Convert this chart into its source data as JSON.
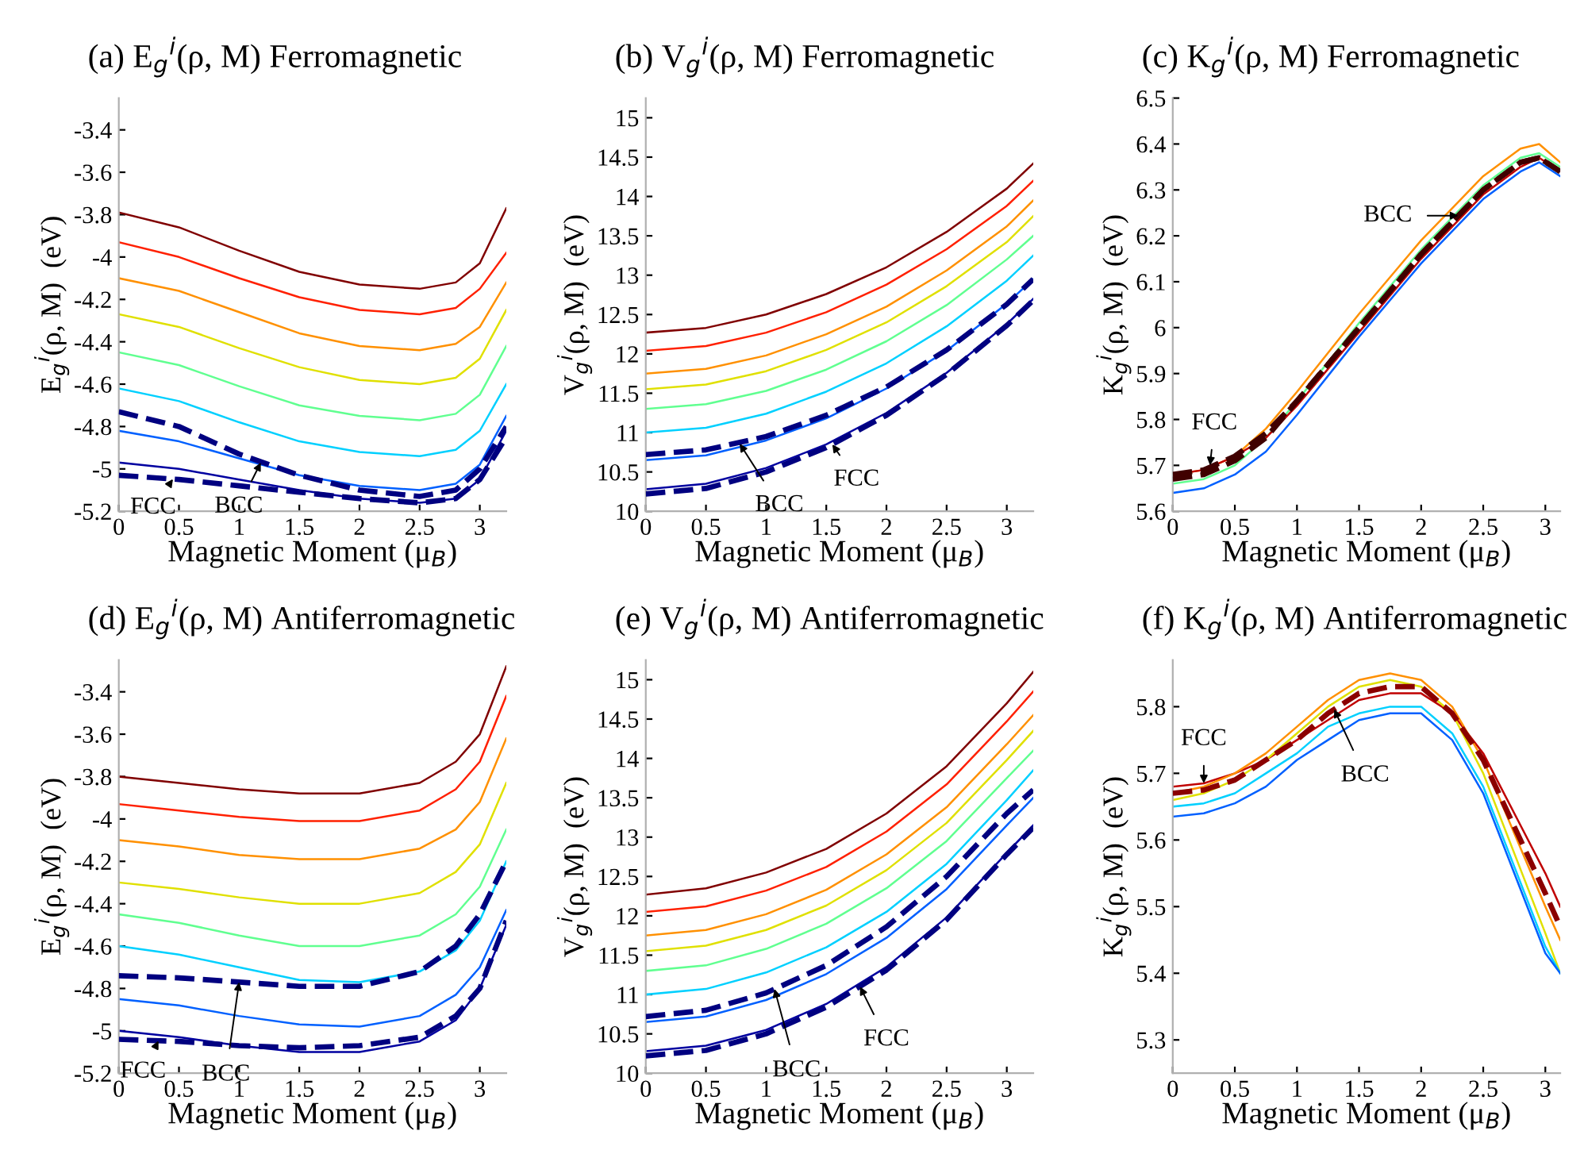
{
  "chart_data": [
    {
      "type": "line",
      "title": "(a) E$_{g}$$^{i}$(ρ, M) Ferromagnetic",
      "xlabel": "Magnetic Moment (μ$_{B}$)",
      "ylabel": "E$_{g}$$^{i}$(ρ, M)  (eV)",
      "x": [
        0,
        0.5,
        1,
        1.5,
        2,
        2.5,
        2.8,
        3,
        3.22
      ],
      "xlim": [
        0,
        3.22
      ],
      "xticks": [
        0,
        0.5,
        1,
        1.5,
        2,
        2.5,
        3
      ],
      "ylim": [
        -5.2,
        -3.25
      ],
      "yticks": [
        -5.2,
        -5,
        -4.8,
        -4.6,
        -4.4,
        -4.2,
        -4,
        -3.8,
        -3.6,
        -3.4
      ],
      "grid": false,
      "series": [
        {
          "color": "#800000",
          "values": [
            -3.79,
            -3.86,
            -3.97,
            -4.07,
            -4.13,
            -4.15,
            -4.12,
            -4.03,
            -3.77
          ]
        },
        {
          "color": "#ff2000",
          "values": [
            -3.93,
            -4.0,
            -4.1,
            -4.19,
            -4.25,
            -4.27,
            -4.24,
            -4.15,
            -3.98
          ]
        },
        {
          "color": "#ff9000",
          "values": [
            -4.1,
            -4.16,
            -4.26,
            -4.36,
            -4.42,
            -4.44,
            -4.41,
            -4.33,
            -4.12
          ]
        },
        {
          "color": "#e0e000",
          "values": [
            -4.27,
            -4.33,
            -4.43,
            -4.52,
            -4.58,
            -4.6,
            -4.57,
            -4.48,
            -4.25
          ]
        },
        {
          "color": "#60ff90",
          "values": [
            -4.45,
            -4.51,
            -4.61,
            -4.7,
            -4.75,
            -4.77,
            -4.74,
            -4.65,
            -4.42
          ]
        },
        {
          "color": "#00d0ff",
          "values": [
            -4.62,
            -4.68,
            -4.78,
            -4.87,
            -4.92,
            -4.94,
            -4.91,
            -4.82,
            -4.6
          ]
        },
        {
          "color": "#0060ff",
          "values": [
            -4.82,
            -4.87,
            -4.95,
            -5.03,
            -5.08,
            -5.1,
            -5.07,
            -4.98,
            -4.75
          ]
        },
        {
          "color": "#0000a0",
          "values": [
            -4.97,
            -5.0,
            -5.05,
            -5.1,
            -5.14,
            -5.16,
            -5.14,
            -5.05,
            -4.82
          ]
        },
        {
          "color": "#000080",
          "line_style": "dashed",
          "values": [
            -4.73,
            -4.8,
            -4.93,
            -5.03,
            -5.1,
            -5.13,
            -5.1,
            -5.0,
            -4.8
          ]
        },
        {
          "color": "#000080",
          "line_style": "dashed",
          "values": [
            -5.03,
            -5.05,
            -5.08,
            -5.11,
            -5.14,
            -5.16,
            -5.14,
            -5.05,
            -4.85
          ]
        }
      ],
      "annotations": [
        {
          "text": "FCC",
          "x": 0.45,
          "y": -5.048
        },
        {
          "text": "BCC",
          "x": 1.18,
          "y": -4.97
        }
      ]
    },
    {
      "type": "line",
      "title": "(b) V$_{g}$$^{i}$(ρ, M) Ferromagnetic",
      "xlabel": "Magnetic Moment (μ$_{B}$)",
      "ylabel": "V$_{g}$$^{i}$(ρ, M)  (eV)",
      "x": [
        0,
        0.5,
        1,
        1.5,
        2,
        2.5,
        3,
        3.22
      ],
      "xlim": [
        0,
        3.22
      ],
      "xticks": [
        0,
        0.5,
        1,
        1.5,
        2,
        2.5,
        3
      ],
      "ylim": [
        10,
        15.25
      ],
      "yticks": [
        10,
        10.5,
        11,
        11.5,
        12,
        12.5,
        13,
        13.5,
        14,
        14.5,
        15
      ],
      "grid": false,
      "series": [
        {
          "color": "#800000",
          "values": [
            12.27,
            12.33,
            12.5,
            12.76,
            13.1,
            13.55,
            14.1,
            14.42
          ]
        },
        {
          "color": "#ff2000",
          "values": [
            12.04,
            12.1,
            12.27,
            12.53,
            12.88,
            13.33,
            13.88,
            14.2
          ]
        },
        {
          "color": "#ff9000",
          "values": [
            11.75,
            11.81,
            11.98,
            12.25,
            12.6,
            13.06,
            13.62,
            13.95
          ]
        },
        {
          "color": "#e0e000",
          "values": [
            11.55,
            11.61,
            11.78,
            12.05,
            12.4,
            12.86,
            13.42,
            13.75
          ]
        },
        {
          "color": "#60ff90",
          "values": [
            11.3,
            11.36,
            11.53,
            11.8,
            12.16,
            12.62,
            13.2,
            13.5
          ]
        },
        {
          "color": "#00d0ff",
          "values": [
            11.0,
            11.06,
            11.24,
            11.52,
            11.88,
            12.35,
            12.93,
            13.25
          ]
        },
        {
          "color": "#0060ff",
          "values": [
            10.65,
            10.71,
            10.9,
            11.18,
            11.56,
            12.04,
            12.64,
            12.95
          ]
        },
        {
          "color": "#0000a0",
          "values": [
            10.28,
            10.35,
            10.55,
            10.85,
            11.25,
            11.76,
            12.38,
            12.7
          ]
        },
        {
          "color": "#000080",
          "line_style": "dashed",
          "values": [
            10.72,
            10.78,
            10.95,
            11.22,
            11.58,
            12.05,
            12.63,
            12.95
          ]
        },
        {
          "color": "#000080",
          "line_style": "dashed",
          "values": [
            10.22,
            10.29,
            10.5,
            10.81,
            11.22,
            11.74,
            12.36,
            12.68
          ]
        }
      ],
      "annotations": [
        {
          "text": "BCC",
          "x": 0.78,
          "y": 10.86
        },
        {
          "text": "FCC",
          "x": 1.55,
          "y": 10.85
        }
      ]
    },
    {
      "type": "line",
      "title": "(c) K$_{g}$$^{i}$(ρ, M) Ferromagnetic",
      "xlabel": "Magnetic Moment (μ$_{B}$)",
      "ylabel": "K$_{g}$$^{i}$(ρ, M)  (eV)",
      "x": [
        0,
        0.25,
        0.5,
        0.75,
        1,
        1.5,
        2,
        2.5,
        2.8,
        2.95,
        3.12
      ],
      "xlim": [
        0,
        3.12
      ],
      "xticks": [
        0,
        0.5,
        1,
        1.5,
        2,
        2.5,
        3
      ],
      "ylim": [
        5.6,
        6.5
      ],
      "yticks": [
        5.6,
        5.7,
        5.8,
        5.9,
        6,
        6.1,
        6.2,
        6.3,
        6.4,
        6.5
      ],
      "grid": false,
      "series": [
        {
          "color": "#ff9000",
          "values": [
            5.68,
            5.69,
            5.72,
            5.78,
            5.86,
            6.03,
            6.19,
            6.33,
            6.39,
            6.4,
            6.36
          ]
        },
        {
          "color": "#60ff90",
          "values": [
            5.66,
            5.67,
            5.7,
            5.76,
            5.84,
            6.01,
            6.17,
            6.31,
            6.37,
            6.38,
            6.35
          ]
        },
        {
          "color": "#0060ff",
          "values": [
            5.64,
            5.65,
            5.68,
            5.73,
            5.81,
            5.98,
            6.14,
            6.28,
            6.34,
            6.36,
            6.33
          ]
        },
        {
          "color": "#c00000",
          "values": [
            5.68,
            5.69,
            5.72,
            5.76,
            5.83,
            5.99,
            6.15,
            6.29,
            6.35,
            6.37,
            6.34
          ]
        },
        {
          "color": "#400000",
          "line_style": "dashed",
          "values": [
            5.67,
            5.68,
            5.71,
            5.76,
            5.84,
            6.0,
            6.16,
            6.3,
            6.36,
            6.37,
            6.34
          ]
        },
        {
          "color": "#400000",
          "line_style": "dashed",
          "values": [
            5.68,
            5.69,
            5.72,
            5.77,
            5.84,
            6.0,
            6.16,
            6.3,
            6.36,
            6.37,
            6.34
          ]
        }
      ],
      "annotations": [
        {
          "text": "FCC",
          "x": 0.3,
          "y": 5.7
        },
        {
          "text": "BCC",
          "x": 2.3,
          "y": 6.244
        }
      ]
    },
    {
      "type": "line",
      "title": "(d) E$_{g}$$^{i}$(ρ, M) Antiferromagnetic",
      "xlabel": "Magnetic Moment (μ$_{B}$)",
      "ylabel": "E$_{g}$$^{i}$(ρ, M)  (eV)",
      "x": [
        0,
        0.5,
        1,
        1.5,
        2,
        2.5,
        2.8,
        3,
        3.22
      ],
      "xlim": [
        0,
        3.22
      ],
      "xticks": [
        0,
        0.5,
        1,
        1.5,
        2,
        2.5,
        3
      ],
      "ylim": [
        -5.2,
        -3.25
      ],
      "yticks": [
        -5.2,
        -5,
        -4.8,
        -4.6,
        -4.4,
        -4.2,
        -4,
        -3.8,
        -3.6,
        -3.4
      ],
      "grid": false,
      "series": [
        {
          "color": "#800000",
          "values": [
            -3.8,
            -3.83,
            -3.86,
            -3.88,
            -3.88,
            -3.83,
            -3.73,
            -3.6,
            -3.28
          ]
        },
        {
          "color": "#ff2000",
          "values": [
            -3.93,
            -3.96,
            -3.99,
            -4.01,
            -4.01,
            -3.96,
            -3.86,
            -3.73,
            -3.42
          ]
        },
        {
          "color": "#ff9000",
          "values": [
            -4.1,
            -4.13,
            -4.17,
            -4.19,
            -4.19,
            -4.14,
            -4.05,
            -3.92,
            -3.62
          ]
        },
        {
          "color": "#e0e000",
          "values": [
            -4.3,
            -4.33,
            -4.37,
            -4.4,
            -4.4,
            -4.35,
            -4.25,
            -4.12,
            -3.83
          ]
        },
        {
          "color": "#60ff90",
          "values": [
            -4.45,
            -4.49,
            -4.55,
            -4.6,
            -4.6,
            -4.55,
            -4.45,
            -4.32,
            -4.05
          ]
        },
        {
          "color": "#00d0ff",
          "values": [
            -4.6,
            -4.64,
            -4.7,
            -4.76,
            -4.77,
            -4.72,
            -4.62,
            -4.48,
            -4.2
          ]
        },
        {
          "color": "#0060ff",
          "values": [
            -4.85,
            -4.88,
            -4.93,
            -4.97,
            -4.98,
            -4.93,
            -4.83,
            -4.7,
            -4.43
          ]
        },
        {
          "color": "#0000a0",
          "values": [
            -5.0,
            -5.03,
            -5.07,
            -5.1,
            -5.1,
            -5.05,
            -4.95,
            -4.8,
            -4.5
          ]
        },
        {
          "color": "#000080",
          "line_style": "dashed",
          "values": [
            -4.74,
            -4.75,
            -4.77,
            -4.79,
            -4.79,
            -4.72,
            -4.6,
            -4.45,
            -4.2
          ]
        },
        {
          "color": "#000080",
          "line_style": "dashed",
          "values": [
            -5.04,
            -5.05,
            -5.07,
            -5.08,
            -5.07,
            -5.03,
            -4.93,
            -4.8,
            -4.48
          ]
        }
      ],
      "annotations": [
        {
          "text": "FCC",
          "x": 0.33,
          "y": -5.047
        },
        {
          "text": "BCC",
          "x": 1.0,
          "y": -4.77
        }
      ]
    },
    {
      "type": "line",
      "title": "(e) V$_{g}$$^{i}$(ρ, M) Antiferromagnetic",
      "xlabel": "Magnetic Moment (μ$_{B}$)",
      "ylabel": "V$_{g}$$^{i}$(ρ, M)  (eV)",
      "x": [
        0,
        0.5,
        1,
        1.5,
        2,
        2.5,
        3,
        3.22
      ],
      "xlim": [
        0,
        3.22
      ],
      "xticks": [
        0,
        0.5,
        1,
        1.5,
        2,
        2.5,
        3
      ],
      "ylim": [
        10,
        15.25
      ],
      "yticks": [
        10,
        10.5,
        11,
        11.5,
        12,
        12.5,
        13,
        13.5,
        14,
        14.5,
        15
      ],
      "grid": false,
      "series": [
        {
          "color": "#800000",
          "values": [
            12.27,
            12.35,
            12.55,
            12.85,
            13.3,
            13.9,
            14.7,
            15.1
          ]
        },
        {
          "color": "#ff2000",
          "values": [
            12.05,
            12.12,
            12.32,
            12.62,
            13.07,
            13.67,
            14.47,
            14.85
          ]
        },
        {
          "color": "#ff9000",
          "values": [
            11.75,
            11.82,
            12.02,
            12.33,
            12.78,
            13.38,
            14.18,
            14.55
          ]
        },
        {
          "color": "#e0e000",
          "values": [
            11.55,
            11.62,
            11.82,
            12.13,
            12.58,
            13.18,
            13.98,
            14.35
          ]
        },
        {
          "color": "#60ff90",
          "values": [
            11.3,
            11.37,
            11.58,
            11.9,
            12.35,
            12.95,
            13.75,
            14.1
          ]
        },
        {
          "color": "#00d0ff",
          "values": [
            11.0,
            11.07,
            11.28,
            11.6,
            12.05,
            12.66,
            13.47,
            13.85
          ]
        },
        {
          "color": "#0060ff",
          "values": [
            10.65,
            10.72,
            10.93,
            11.26,
            11.72,
            12.34,
            13.15,
            13.5
          ]
        },
        {
          "color": "#0000a0",
          "values": [
            10.28,
            10.35,
            10.55,
            10.88,
            11.35,
            11.98,
            12.8,
            13.15
          ]
        },
        {
          "color": "#000080",
          "line_style": "dashed",
          "values": [
            10.72,
            10.8,
            11.02,
            11.37,
            11.86,
            12.5,
            13.3,
            13.6
          ]
        },
        {
          "color": "#000080",
          "line_style": "dashed",
          "values": [
            10.22,
            10.29,
            10.5,
            10.84,
            11.31,
            11.95,
            12.78,
            13.12
          ]
        }
      ],
      "annotations": [
        {
          "text": "BCC",
          "x": 1.07,
          "y": 11.07
        },
        {
          "text": "FCC",
          "x": 1.78,
          "y": 11.1
        }
      ]
    },
    {
      "type": "line",
      "title": "(f) K$_{g}$$^{i}$(ρ, M) Antiferromagnetic",
      "xlabel": "Magnetic Moment (μ$_{B}$)",
      "ylabel": "K$_{g}$$^{i}$(ρ, M)  (eV)",
      "x": [
        0,
        0.25,
        0.5,
        0.75,
        1,
        1.25,
        1.5,
        1.75,
        2,
        2.25,
        2.5,
        2.75,
        3,
        3.12
      ],
      "xlim": [
        0,
        3.12
      ],
      "xticks": [
        0,
        0.5,
        1,
        1.5,
        2,
        2.5,
        3
      ],
      "ylim": [
        5.25,
        5.87
      ],
      "yticks": [
        5.3,
        5.4,
        5.5,
        5.6,
        5.7,
        5.8
      ],
      "grid": false,
      "series": [
        {
          "color": "#c00000",
          "values": [
            5.68,
            5.685,
            5.7,
            5.72,
            5.75,
            5.78,
            5.81,
            5.82,
            5.82,
            5.79,
            5.73,
            5.64,
            5.55,
            5.5
          ]
        },
        {
          "color": "#ff9000",
          "values": [
            5.67,
            5.68,
            5.7,
            5.73,
            5.77,
            5.81,
            5.84,
            5.85,
            5.84,
            5.8,
            5.72,
            5.61,
            5.5,
            5.45
          ]
        },
        {
          "color": "#e0e000",
          "values": [
            5.66,
            5.67,
            5.69,
            5.72,
            5.76,
            5.8,
            5.83,
            5.84,
            5.83,
            5.79,
            5.7,
            5.58,
            5.46,
            5.4
          ]
        },
        {
          "color": "#00d0ff",
          "values": [
            5.65,
            5.655,
            5.67,
            5.7,
            5.73,
            5.77,
            5.79,
            5.8,
            5.8,
            5.76,
            5.68,
            5.56,
            5.44,
            5.4
          ]
        },
        {
          "color": "#0060ff",
          "values": [
            5.635,
            5.64,
            5.655,
            5.68,
            5.72,
            5.75,
            5.78,
            5.79,
            5.79,
            5.75,
            5.67,
            5.55,
            5.43,
            5.4
          ]
        },
        {
          "color": "#8b0000",
          "line_style": "dashed",
          "values": [
            5.67,
            5.675,
            5.69,
            5.72,
            5.75,
            5.79,
            5.82,
            5.83,
            5.83,
            5.79,
            5.72,
            5.62,
            5.52,
            5.47
          ]
        }
      ],
      "annotations": [
        {
          "text": "FCC",
          "x": 0.25,
          "y": 5.685
        },
        {
          "text": "BCC",
          "x": 1.3,
          "y": 5.796
        }
      ]
    }
  ]
}
